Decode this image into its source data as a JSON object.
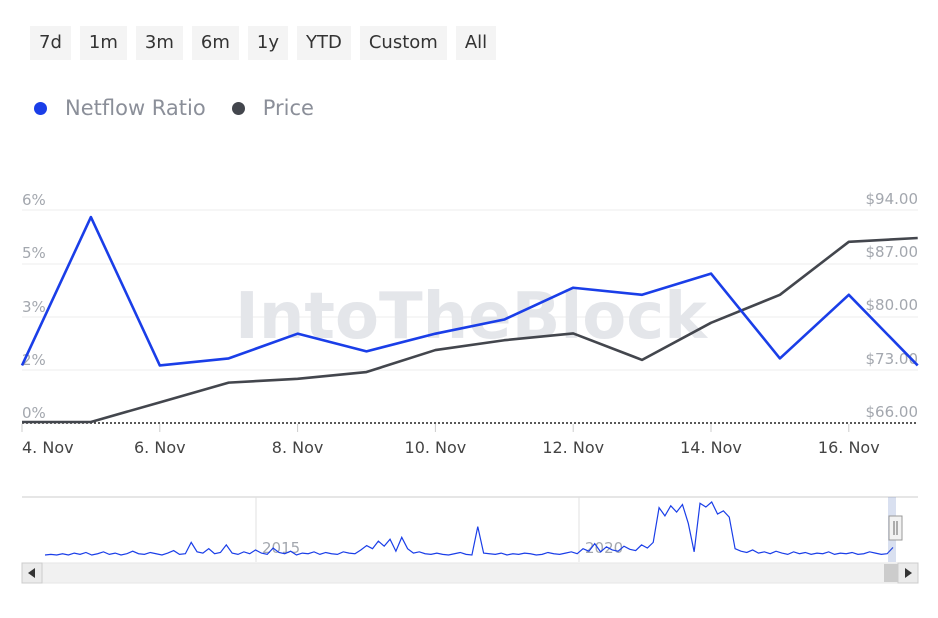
{
  "ranges": [
    "7d",
    "1m",
    "3m",
    "6m",
    "1y",
    "YTD",
    "Custom",
    "All"
  ],
  "colors": {
    "netflow": "#1a3ee8",
    "price": "#43464d",
    "navigator": "#1a3ee8"
  },
  "watermark": "IntoTheBlock",
  "chart_data": {
    "type": "line",
    "x": [
      "4 Nov",
      "5 Nov",
      "6 Nov",
      "7 Nov",
      "8 Nov",
      "9 Nov",
      "10 Nov",
      "11 Nov",
      "12 Nov",
      "13 Nov",
      "14 Nov",
      "15 Nov",
      "16 Nov",
      "17 Nov"
    ],
    "x_tick_labels": [
      "4. Nov",
      "6. Nov",
      "8. Nov",
      "10. Nov",
      "12. Nov",
      "14. Nov",
      "16. Nov"
    ],
    "series": [
      {
        "name": "Netflow Ratio",
        "axis": "left",
        "values": [
          1.6,
          5.8,
          1.6,
          1.8,
          2.5,
          2.0,
          2.5,
          2.9,
          3.8,
          3.6,
          4.2,
          1.8,
          3.6,
          1.6
        ]
      },
      {
        "name": "Price",
        "axis": "right",
        "values": [
          66.0,
          66.0,
          68.6,
          71.2,
          71.7,
          72.6,
          75.5,
          76.8,
          77.7,
          74.2,
          79.1,
          82.8,
          89.8,
          90.3
        ]
      }
    ],
    "left_axis": {
      "ticks": [
        0,
        2,
        3,
        5,
        6
      ],
      "tick_labels": [
        "0%",
        "2%",
        "3%",
        "5%",
        "6%"
      ],
      "range": [
        0,
        6
      ]
    },
    "right_axis": {
      "ticks": [
        66,
        73,
        80,
        87,
        94
      ],
      "tick_labels": [
        "$66.00",
        "$73.00",
        "$80.00",
        "$87.00",
        "$94.00"
      ],
      "range": [
        66,
        94
      ]
    },
    "legend": "top-left",
    "grid": true,
    "navigator": {
      "labels": [
        "2015",
        "2020"
      ],
      "values": [
        1,
        1.1,
        1,
        1.2,
        1,
        1.3,
        1.1,
        1.4,
        1,
        1.2,
        1.5,
        1.1,
        1.3,
        1,
        1.2,
        1.6,
        1.2,
        1.1,
        1.4,
        1.2,
        1,
        1.3,
        1.7,
        1.1,
        1.2,
        3,
        1.5,
        1.3,
        2,
        1.2,
        1.4,
        2.6,
        1.3,
        1.1,
        1.5,
        1.2,
        1.8,
        1.3,
        1.1,
        2.1,
        1.4,
        1.2,
        1.6,
        1,
        1.3,
        1.2,
        1.5,
        1.1,
        1.4,
        1.2,
        1.1,
        1.5,
        1.3,
        1.2,
        1.8,
        2.5,
        2,
        3.2,
        2.4,
        3.5,
        1.6,
        3.8,
        2,
        1.3,
        1.5,
        1.2,
        1.1,
        1.3,
        1.1,
        1,
        1.2,
        1.4,
        1.1,
        1,
        5.5,
        1.3,
        1.2,
        1.1,
        1.3,
        1,
        1.2,
        1.1,
        1.3,
        1.2,
        1,
        1.1,
        1.4,
        1.2,
        1.1,
        1.3,
        1.5,
        1.2,
        2,
        1.6,
        2.8,
        1.5,
        2.3,
        1.8,
        1.6,
        2.4,
        1.9,
        1.7,
        2.6,
        2.1,
        3,
        8.5,
        7.2,
        8.8,
        7.8,
        9,
        6,
        1.5,
        9.2,
        8.6,
        9.4,
        7.5,
        8,
        7,
        2,
        1.6,
        1.4,
        1.8,
        1.3,
        1.5,
        1.2,
        1.6,
        1.3,
        1.1,
        1.5,
        1.2,
        1.4,
        1.1,
        1.3,
        1.2,
        1.5,
        1.1,
        1.3,
        1.2,
        1.4,
        1.1,
        1.2,
        1.5,
        1.3,
        1.1,
        1.2,
        2.2
      ]
    }
  }
}
